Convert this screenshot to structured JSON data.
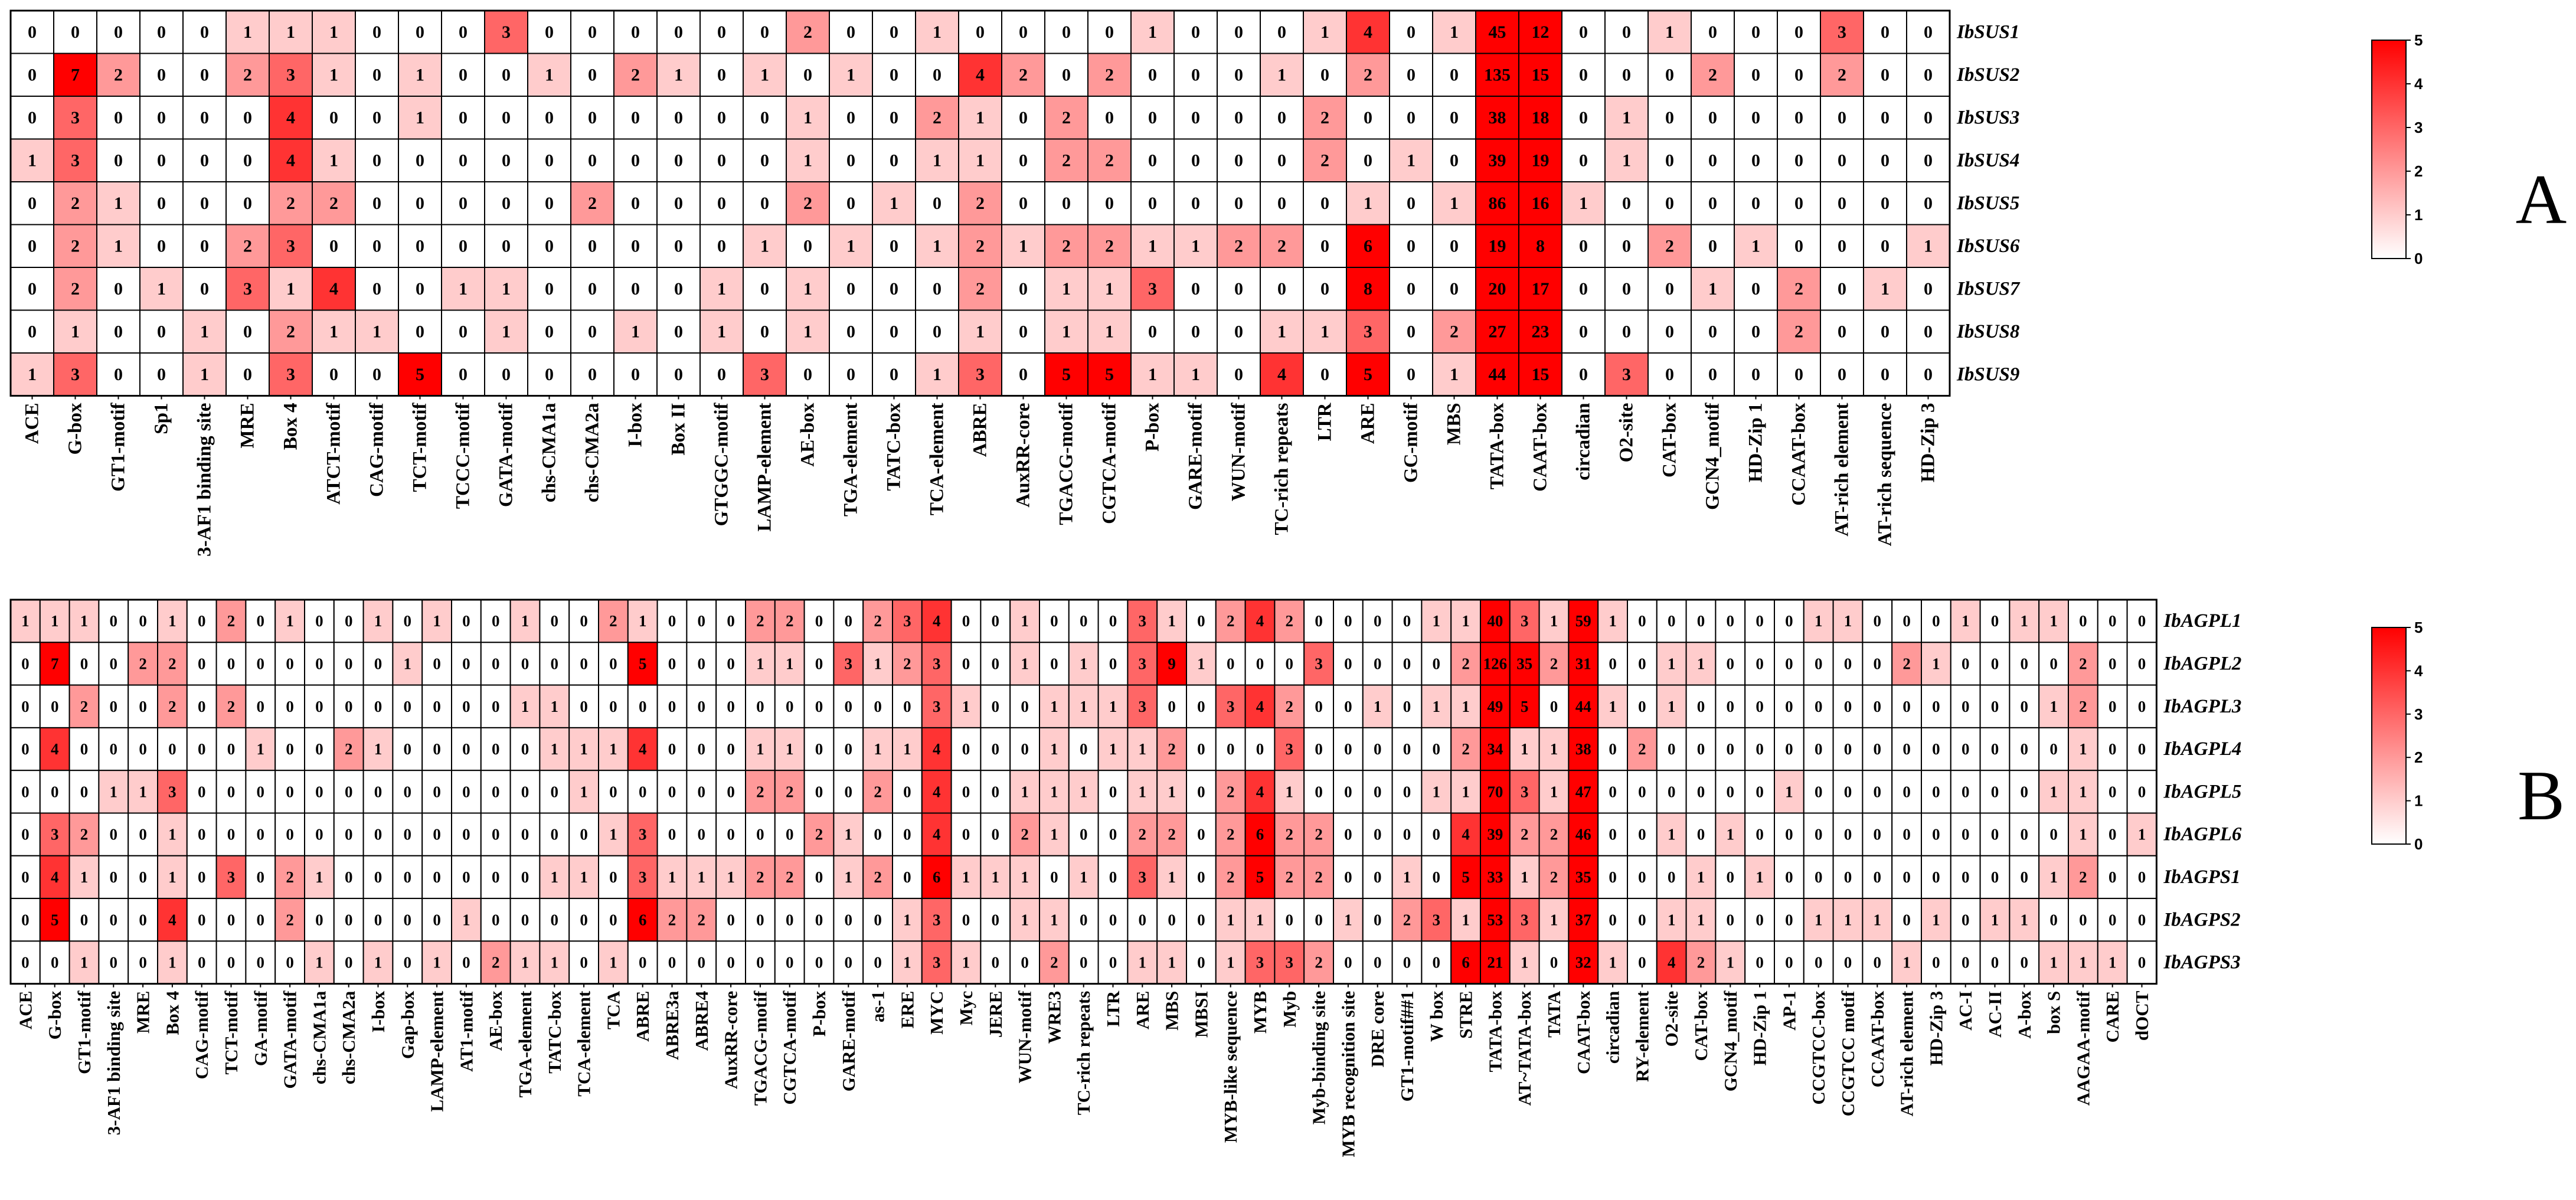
{
  "chart_data": [
    {
      "type": "heatmap",
      "panel_label": "A",
      "colorbar": {
        "min": 0,
        "max": 5,
        "ticks": [
          "0",
          "1",
          "2",
          "3",
          "4",
          "5"
        ],
        "low_color": "#ffffff",
        "high_color": "#ff0000"
      },
      "rows": [
        "IbSUS1",
        "IbSUS2",
        "IbSUS3",
        "IbSUS4",
        "IbSUS5",
        "IbSUS6",
        "IbSUS7",
        "IbSUS8",
        "IbSUS9"
      ],
      "columns": [
        "ACE",
        "G-box",
        "GT1-motif",
        "Sp1",
        "3-AF1 binding site",
        "MRE",
        "Box 4",
        "ATCT-motif",
        "CAG-motif",
        "TCT-motif",
        "TCCC-motif",
        "GATA-motif",
        "chs-CMA1a",
        "chs-CMA2a",
        "I-box",
        "Box II",
        "GTGGC-motif",
        "LAMP-element",
        "AE-box",
        "TGA-element",
        "TATC-box",
        "TCA-element",
        "ABRE",
        "AuxRR-core",
        "TGACG-motif",
        "CGTCA-motif",
        "P-box",
        "GARE-motif",
        "WUN-motif",
        "TC-rich repeats",
        "LTR",
        "ARE",
        "GC-motif",
        "MBS",
        "TATA-box",
        "CAAT-box",
        "circadian",
        "O2-site",
        "CAT-box",
        "GCN4_motif",
        "HD-Zip 1",
        "CCAAT-box",
        "AT-rich element",
        "AT-rich sequence",
        "HD-Zip 3"
      ],
      "values": [
        [
          0,
          0,
          0,
          0,
          0,
          1,
          1,
          1,
          0,
          0,
          0,
          3,
          0,
          0,
          0,
          0,
          0,
          0,
          2,
          0,
          0,
          1,
          0,
          0,
          0,
          0,
          1,
          0,
          0,
          0,
          1,
          4,
          0,
          1,
          45,
          12,
          0,
          0,
          1,
          0,
          0,
          0,
          3,
          0,
          0
        ],
        [
          0,
          7,
          2,
          0,
          0,
          2,
          3,
          1,
          0,
          1,
          0,
          0,
          1,
          0,
          2,
          1,
          0,
          1,
          0,
          1,
          0,
          0,
          4,
          2,
          0,
          2,
          0,
          0,
          0,
          1,
          0,
          2,
          0,
          0,
          135,
          15,
          0,
          0,
          0,
          2,
          0,
          0,
          2,
          0,
          0
        ],
        [
          0,
          3,
          0,
          0,
          0,
          0,
          4,
          0,
          0,
          1,
          0,
          0,
          0,
          0,
          0,
          0,
          0,
          0,
          1,
          0,
          0,
          2,
          1,
          0,
          2,
          0,
          0,
          0,
          0,
          0,
          2,
          0,
          0,
          0,
          38,
          18,
          0,
          1,
          0,
          0,
          0,
          0,
          0,
          0,
          0
        ],
        [
          1,
          3,
          0,
          0,
          0,
          0,
          4,
          1,
          0,
          0,
          0,
          0,
          0,
          0,
          0,
          0,
          0,
          0,
          1,
          0,
          0,
          1,
          1,
          0,
          2,
          2,
          0,
          0,
          0,
          0,
          2,
          0,
          1,
          0,
          39,
          19,
          0,
          1,
          0,
          0,
          0,
          0,
          0,
          0,
          0
        ],
        [
          0,
          2,
          1,
          0,
          0,
          0,
          2,
          2,
          0,
          0,
          0,
          0,
          0,
          2,
          0,
          0,
          0,
          0,
          2,
          0,
          1,
          0,
          2,
          0,
          0,
          0,
          0,
          0,
          0,
          0,
          0,
          1,
          0,
          1,
          86,
          16,
          1,
          0,
          0,
          0,
          0,
          0,
          0,
          0,
          0
        ],
        [
          0,
          2,
          1,
          0,
          0,
          2,
          3,
          0,
          0,
          0,
          0,
          0,
          0,
          0,
          0,
          0,
          0,
          1,
          0,
          1,
          0,
          1,
          2,
          1,
          2,
          2,
          1,
          1,
          2,
          2,
          0,
          6,
          0,
          0,
          19,
          8,
          0,
          0,
          2,
          0,
          1,
          0,
          0,
          0,
          1
        ],
        [
          0,
          2,
          0,
          1,
          0,
          3,
          1,
          4,
          0,
          0,
          1,
          1,
          0,
          0,
          0,
          0,
          1,
          0,
          1,
          0,
          0,
          0,
          2,
          0,
          1,
          1,
          3,
          0,
          0,
          0,
          0,
          8,
          0,
          0,
          20,
          17,
          0,
          0,
          0,
          1,
          0,
          2,
          0,
          1,
          0
        ],
        [
          0,
          1,
          0,
          0,
          1,
          0,
          2,
          1,
          1,
          0,
          0,
          1,
          0,
          0,
          1,
          0,
          1,
          0,
          1,
          0,
          0,
          0,
          1,
          0,
          1,
          1,
          0,
          0,
          0,
          1,
          1,
          3,
          0,
          2,
          27,
          23,
          0,
          0,
          0,
          0,
          0,
          2,
          0,
          0,
          0
        ],
        [
          1,
          3,
          0,
          0,
          1,
          0,
          3,
          0,
          0,
          5,
          0,
          0,
          0,
          0,
          0,
          0,
          0,
          3,
          0,
          0,
          0,
          1,
          3,
          0,
          5,
          5,
          1,
          1,
          0,
          4,
          0,
          5,
          0,
          1,
          44,
          15,
          0,
          3,
          0,
          0,
          0,
          0,
          0,
          0,
          0
        ]
      ]
    },
    {
      "type": "heatmap",
      "panel_label": "B",
      "colorbar": {
        "min": 0,
        "max": 5,
        "ticks": [
          "0",
          "1",
          "2",
          "3",
          "4",
          "5"
        ],
        "low_color": "#ffffff",
        "high_color": "#ff0000"
      },
      "rows": [
        "IbAGPL1",
        "IbAGPL2",
        "IbAGPL3",
        "IbAGPL4",
        "IbAGPL5",
        "IbAGPL6",
        "IbAGPS1",
        "IbAGPS2",
        "IbAGPS3"
      ],
      "columns": [
        "ACE",
        "G-box",
        "GT1-motif",
        "3-AF1 binding site",
        "MRE",
        "Box 4",
        "CAG-motif",
        "TCT-motif",
        "GA-motif",
        "GATA-motif",
        "chs-CMA1a",
        "chs-CMA2a",
        "I-box",
        "Gap-box",
        "LAMP-element",
        "AT1-motif",
        "AE-box",
        "TGA-element",
        "TATC-box",
        "TCA-element",
        "TCA",
        "ABRE",
        "ABRE3a",
        "ABRE4",
        "AuxRR-core",
        "TGACG-motif",
        "CGTCA-motif",
        "P-box",
        "GARE-motif",
        "as-1",
        "ERE",
        "MYC",
        "Myc",
        "JERE",
        "WUN-motif",
        "WRE3",
        "TC-rich repeats",
        "LTR",
        "ARE",
        "MBS",
        "MBSI",
        "MYB-like sequence",
        "MYB",
        "Myb",
        "Myb-binding site",
        "MYB recognition site",
        "DRE core",
        "GT1-motif##1",
        "W box",
        "STRE",
        "TATA-box",
        "AT~TATA-box",
        "TATA",
        "CAAT-box",
        "circadian",
        "RY-element",
        "O2-site",
        "CAT-box",
        "GCN4_motif",
        "HD-Zip 1",
        "AP-1",
        "CCGTCC-box",
        "CCGTCC motif",
        "CCAAT-box",
        "AT-rich element",
        "HD-Zip 3",
        "AC-I",
        "AC-II",
        "A-box",
        "box S",
        "AAGAA-motif",
        "CARE",
        "dOCT"
      ],
      "values": [
        [
          1,
          1,
          1,
          0,
          0,
          1,
          0,
          2,
          0,
          1,
          0,
          0,
          1,
          0,
          1,
          0,
          0,
          1,
          0,
          0,
          2,
          1,
          0,
          0,
          0,
          2,
          2,
          0,
          0,
          2,
          3,
          4,
          0,
          0,
          1,
          0,
          0,
          0,
          3,
          1,
          0,
          2,
          4,
          2,
          0,
          0,
          0,
          0,
          1,
          1,
          40,
          3,
          1,
          59,
          1,
          0,
          0,
          0,
          0,
          0,
          0,
          1,
          1,
          0,
          0,
          0,
          1,
          0,
          1,
          1,
          0,
          0,
          0
        ],
        [
          0,
          7,
          0,
          0,
          2,
          2,
          0,
          0,
          0,
          0,
          0,
          0,
          0,
          1,
          0,
          0,
          0,
          0,
          0,
          0,
          0,
          5,
          0,
          0,
          0,
          1,
          1,
          0,
          3,
          1,
          2,
          3,
          0,
          0,
          1,
          0,
          1,
          0,
          3,
          9,
          1,
          0,
          0,
          0,
          3,
          0,
          0,
          0,
          0,
          2,
          126,
          35,
          2,
          31,
          0,
          0,
          1,
          1,
          0,
          0,
          0,
          0,
          0,
          0,
          2,
          1,
          0,
          0,
          0,
          0,
          2,
          0,
          0
        ],
        [
          0,
          0,
          2,
          0,
          0,
          2,
          0,
          2,
          0,
          0,
          0,
          0,
          0,
          0,
          0,
          0,
          0,
          1,
          1,
          0,
          0,
          0,
          0,
          0,
          0,
          0,
          0,
          0,
          0,
          0,
          0,
          3,
          1,
          0,
          0,
          1,
          1,
          1,
          3,
          0,
          0,
          3,
          4,
          2,
          0,
          0,
          1,
          0,
          1,
          1,
          49,
          5,
          0,
          44,
          1,
          0,
          1,
          0,
          0,
          0,
          0,
          0,
          0,
          0,
          0,
          0,
          0,
          0,
          0,
          1,
          2,
          0,
          0
        ],
        [
          0,
          4,
          0,
          0,
          0,
          0,
          0,
          0,
          1,
          0,
          0,
          2,
          1,
          0,
          0,
          0,
          0,
          0,
          1,
          1,
          1,
          4,
          0,
          0,
          0,
          1,
          1,
          0,
          0,
          1,
          1,
          4,
          0,
          0,
          0,
          1,
          0,
          1,
          1,
          2,
          0,
          0,
          0,
          3,
          0,
          0,
          0,
          0,
          0,
          2,
          34,
          1,
          1,
          38,
          0,
          2,
          0,
          0,
          0,
          0,
          0,
          0,
          0,
          0,
          0,
          0,
          0,
          0,
          0,
          0,
          1,
          0,
          0
        ],
        [
          0,
          0,
          0,
          1,
          1,
          3,
          0,
          0,
          0,
          0,
          0,
          0,
          0,
          0,
          0,
          0,
          0,
          0,
          0,
          1,
          0,
          0,
          0,
          0,
          0,
          2,
          2,
          0,
          0,
          2,
          0,
          4,
          0,
          0,
          1,
          1,
          1,
          0,
          1,
          1,
          0,
          2,
          4,
          1,
          0,
          0,
          0,
          0,
          1,
          1,
          70,
          3,
          1,
          47,
          0,
          0,
          0,
          0,
          0,
          0,
          1,
          0,
          0,
          0,
          0,
          0,
          0,
          0,
          0,
          1,
          1,
          0,
          0
        ],
        [
          0,
          3,
          2,
          0,
          0,
          1,
          0,
          0,
          0,
          0,
          0,
          0,
          0,
          0,
          0,
          0,
          0,
          0,
          0,
          0,
          1,
          3,
          0,
          0,
          0,
          0,
          0,
          2,
          1,
          0,
          0,
          4,
          0,
          0,
          2,
          1,
          0,
          0,
          2,
          2,
          0,
          2,
          6,
          2,
          2,
          0,
          0,
          0,
          0,
          4,
          39,
          2,
          2,
          46,
          0,
          0,
          1,
          0,
          1,
          0,
          0,
          0,
          0,
          0,
          0,
          0,
          0,
          0,
          0,
          0,
          1,
          0,
          1
        ],
        [
          0,
          4,
          1,
          0,
          0,
          1,
          0,
          3,
          0,
          2,
          1,
          0,
          0,
          0,
          0,
          0,
          0,
          0,
          1,
          1,
          0,
          3,
          1,
          1,
          1,
          2,
          2,
          0,
          1,
          2,
          0,
          6,
          1,
          1,
          1,
          0,
          1,
          0,
          3,
          1,
          0,
          2,
          5,
          2,
          2,
          0,
          0,
          1,
          0,
          5,
          33,
          1,
          2,
          35,
          0,
          0,
          0,
          1,
          0,
          1,
          0,
          0,
          0,
          0,
          0,
          0,
          0,
          0,
          0,
          1,
          2,
          0,
          0
        ],
        [
          0,
          5,
          0,
          0,
          0,
          4,
          0,
          0,
          0,
          2,
          0,
          0,
          0,
          0,
          0,
          1,
          0,
          0,
          0,
          0,
          0,
          6,
          2,
          2,
          0,
          0,
          0,
          0,
          0,
          0,
          1,
          3,
          0,
          0,
          1,
          1,
          0,
          0,
          0,
          0,
          0,
          1,
          1,
          0,
          0,
          1,
          0,
          2,
          3,
          1,
          53,
          3,
          1,
          37,
          0,
          0,
          1,
          1,
          0,
          0,
          0,
          1,
          1,
          1,
          0,
          1,
          0,
          1,
          1,
          0,
          0,
          0,
          0
        ],
        [
          0,
          0,
          1,
          0,
          0,
          1,
          0,
          0,
          0,
          0,
          1,
          0,
          1,
          0,
          1,
          0,
          2,
          1,
          1,
          0,
          1,
          0,
          0,
          0,
          0,
          0,
          0,
          0,
          0,
          0,
          1,
          3,
          1,
          0,
          0,
          2,
          0,
          0,
          1,
          1,
          0,
          1,
          3,
          3,
          2,
          0,
          0,
          0,
          0,
          6,
          21,
          1,
          0,
          32,
          1,
          0,
          4,
          2,
          1,
          0,
          0,
          0,
          0,
          0,
          1,
          0,
          0,
          0,
          0,
          1,
          1,
          1,
          0
        ]
      ]
    }
  ]
}
